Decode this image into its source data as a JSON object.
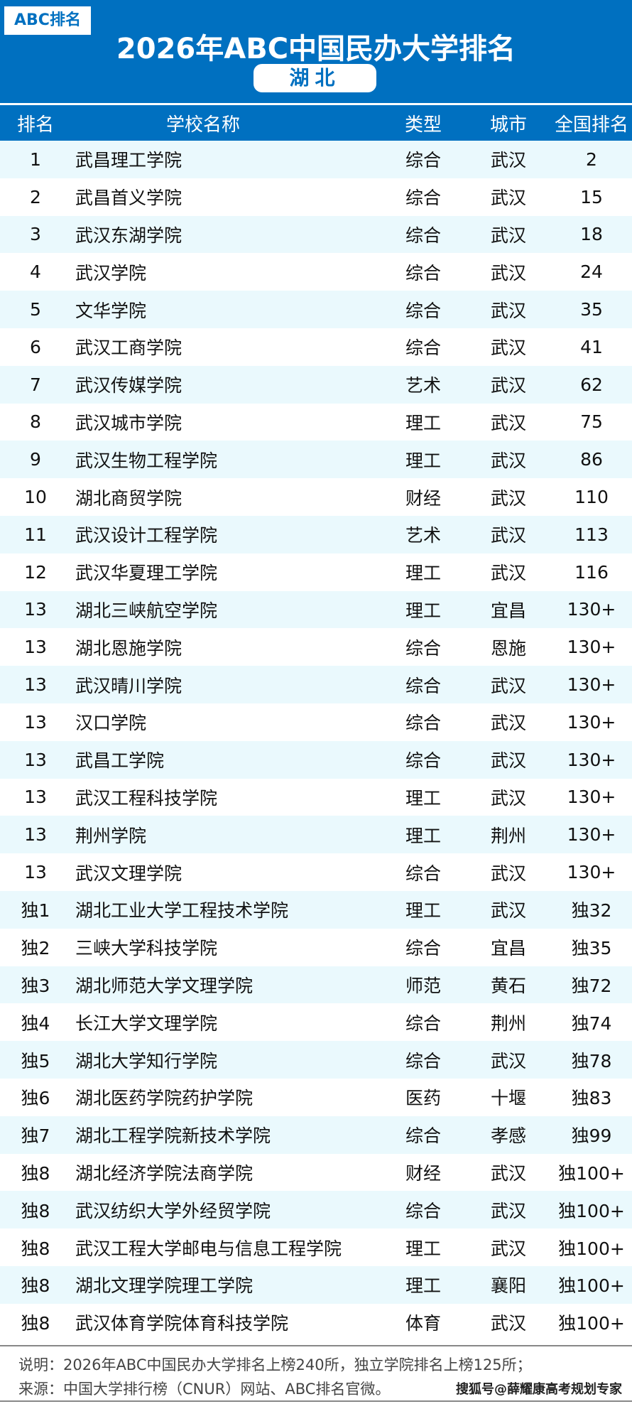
{
  "header": {
    "logo": "ABC排名",
    "title": "2026年ABC中国民办大学排名",
    "province": "湖北"
  },
  "columns": [
    "排名",
    "学校名称",
    "类型",
    "城市",
    "全国排名"
  ],
  "rows": [
    [
      "1",
      "武昌理工学院",
      "综合",
      "武汉",
      "2"
    ],
    [
      "2",
      "武昌首义学院",
      "综合",
      "武汉",
      "15"
    ],
    [
      "3",
      "武汉东湖学院",
      "综合",
      "武汉",
      "18"
    ],
    [
      "4",
      "武汉学院",
      "综合",
      "武汉",
      "24"
    ],
    [
      "5",
      "文华学院",
      "综合",
      "武汉",
      "35"
    ],
    [
      "6",
      "武汉工商学院",
      "综合",
      "武汉",
      "41"
    ],
    [
      "7",
      "武汉传媒学院",
      "艺术",
      "武汉",
      "62"
    ],
    [
      "8",
      "武汉城市学院",
      "理工",
      "武汉",
      "75"
    ],
    [
      "9",
      "武汉生物工程学院",
      "理工",
      "武汉",
      "86"
    ],
    [
      "10",
      "湖北商贸学院",
      "财经",
      "武汉",
      "110"
    ],
    [
      "11",
      "武汉设计工程学院",
      "艺术",
      "武汉",
      "113"
    ],
    [
      "12",
      "武汉华夏理工学院",
      "理工",
      "武汉",
      "116"
    ],
    [
      "13",
      "湖北三峡航空学院",
      "理工",
      "宜昌",
      "130+"
    ],
    [
      "13",
      "湖北恩施学院",
      "综合",
      "恩施",
      "130+"
    ],
    [
      "13",
      "武汉晴川学院",
      "综合",
      "武汉",
      "130+"
    ],
    [
      "13",
      "汉口学院",
      "综合",
      "武汉",
      "130+"
    ],
    [
      "13",
      "武昌工学院",
      "综合",
      "武汉",
      "130+"
    ],
    [
      "13",
      "武汉工程科技学院",
      "理工",
      "武汉",
      "130+"
    ],
    [
      "13",
      "荆州学院",
      "理工",
      "荆州",
      "130+"
    ],
    [
      "13",
      "武汉文理学院",
      "综合",
      "武汉",
      "130+"
    ],
    [
      "独1",
      "湖北工业大学工程技术学院",
      "理工",
      "武汉",
      "独32"
    ],
    [
      "独2",
      "三峡大学科技学院",
      "综合",
      "宜昌",
      "独35"
    ],
    [
      "独3",
      "湖北师范大学文理学院",
      "师范",
      "黄石",
      "独72"
    ],
    [
      "独4",
      "长江大学文理学院",
      "综合",
      "荆州",
      "独74"
    ],
    [
      "独5",
      "湖北大学知行学院",
      "综合",
      "武汉",
      "独78"
    ],
    [
      "独6",
      "湖北医药学院药护学院",
      "医药",
      "十堰",
      "独83"
    ],
    [
      "独7",
      "湖北工程学院新技术学院",
      "综合",
      "孝感",
      "独99"
    ],
    [
      "独8",
      "湖北经济学院法商学院",
      "财经",
      "武汉",
      "独100+"
    ],
    [
      "独8",
      "武汉纺织大学外经贸学院",
      "综合",
      "武汉",
      "独100+"
    ],
    [
      "独8",
      "武汉工程大学邮电与信息工程学院",
      "理工",
      "武汉",
      "独100+"
    ],
    [
      "独8",
      "湖北文理学院理工学院",
      "理工",
      "襄阳",
      "独100+"
    ],
    [
      "独8",
      "武汉体育学院体育科技学院",
      "体育",
      "武汉",
      "独100+"
    ]
  ],
  "footer": {
    "note": "说明：2026年ABC中国民办大学排名上榜240所，独立学院排名上榜125所；",
    "source": "来源：中国大学排行榜（CNUR）网站、ABC排名官微。",
    "watermark": "搜狐号@薛耀康高考规划专家"
  },
  "colors": {
    "brand": "#0070c0",
    "row_alt": "#eaf9fd"
  }
}
